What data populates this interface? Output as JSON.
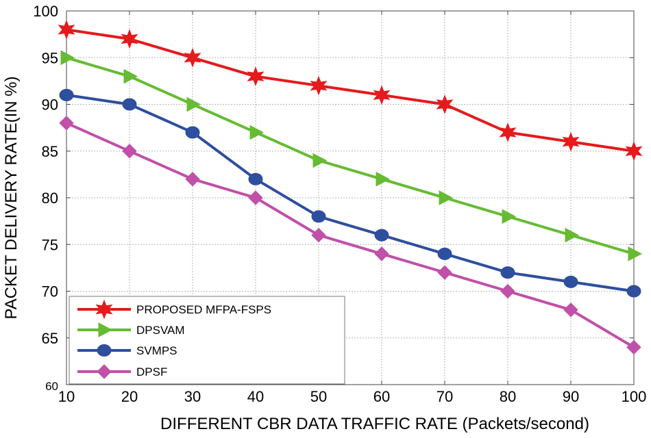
{
  "chart_data": {
    "type": "line",
    "title": "",
    "xlabel": "DIFFERENT CBR DATA TRAFFIC RATE (Packets/second)",
    "ylabel": "PACKET DELIVERY RATE(IN %)",
    "x": [
      10,
      20,
      30,
      40,
      50,
      60,
      70,
      80,
      90,
      100
    ],
    "xlim": [
      10,
      100
    ],
    "ylim": [
      60,
      100
    ],
    "x_ticks": [
      "10",
      "20",
      "30",
      "40",
      "50",
      "60",
      "70",
      "80",
      "90",
      "100"
    ],
    "y_ticks": [
      "60",
      "65",
      "70",
      "75",
      "80",
      "85",
      "90",
      "95",
      "100"
    ],
    "grid": true,
    "legend_position": "bottom-left",
    "series": [
      {
        "name": "PROPOSED MFPA-FSPS",
        "color": "#e41a1c",
        "marker": "star",
        "values": [
          98,
          97,
          95,
          93,
          92,
          91,
          90,
          87,
          86,
          85
        ]
      },
      {
        "name": "DPSVAM",
        "color": "#66bb33",
        "marker": "triangle-right",
        "values": [
          95,
          93,
          90,
          87,
          84,
          82,
          80,
          78,
          76,
          74
        ]
      },
      {
        "name": "SVMPS",
        "color": "#2e4e9e",
        "marker": "circle",
        "values": [
          91,
          90,
          87,
          82,
          78,
          76,
          74,
          72,
          71,
          70
        ]
      },
      {
        "name": "DPSF",
        "color": "#c050a8",
        "marker": "diamond",
        "values": [
          88,
          85,
          82,
          80,
          76,
          74,
          72,
          70,
          68,
          64
        ]
      }
    ]
  }
}
